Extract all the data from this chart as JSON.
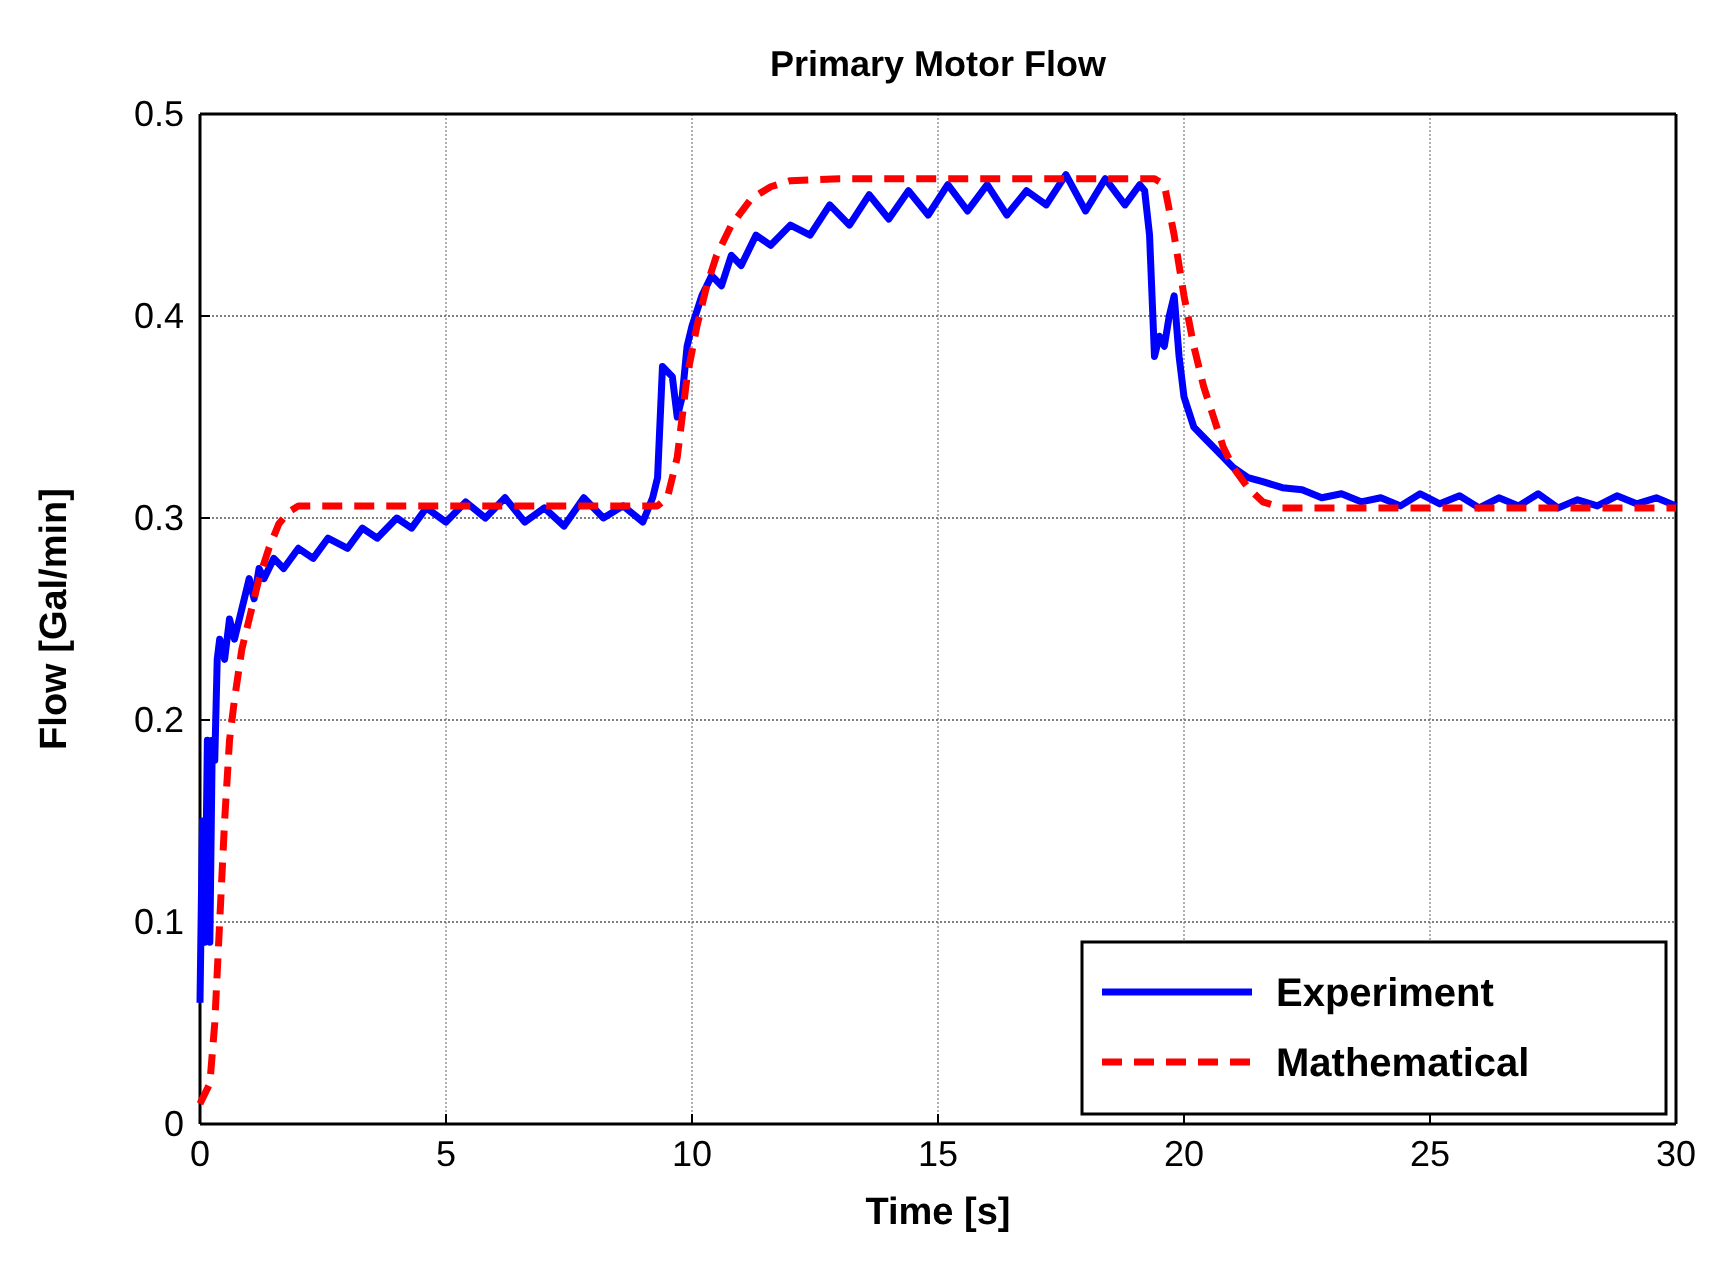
{
  "chart_data": {
    "type": "line",
    "title": "Primary Motor Flow",
    "xlabel": "Time [s]",
    "ylabel": "Flow [Gal/min]",
    "xlim": [
      0,
      30
    ],
    "ylim": [
      0,
      0.5
    ],
    "xticks": [
      0,
      5,
      10,
      15,
      20,
      25,
      30
    ],
    "yticks": [
      0,
      0.1,
      0.2,
      0.3,
      0.4,
      0.5
    ],
    "grid": true,
    "legend": "bottom right",
    "series": [
      {
        "name": "Experiment",
        "color": "#0000ff",
        "line_style": "solid",
        "x": [
          0,
          0.05,
          0.1,
          0.15,
          0.2,
          0.25,
          0.3,
          0.35,
          0.4,
          0.5,
          0.6,
          0.7,
          0.8,
          0.9,
          1.0,
          1.1,
          1.2,
          1.3,
          1.5,
          1.7,
          2.0,
          2.3,
          2.6,
          3.0,
          3.3,
          3.6,
          4.0,
          4.3,
          4.6,
          5.0,
          5.4,
          5.8,
          6.2,
          6.6,
          7.0,
          7.4,
          7.8,
          8.2,
          8.6,
          9.0,
          9.2,
          9.3,
          9.4,
          9.6,
          9.7,
          9.8,
          9.9,
          10.0,
          10.2,
          10.4,
          10.6,
          10.8,
          11.0,
          11.3,
          11.6,
          12.0,
          12.4,
          12.8,
          13.2,
          13.6,
          14.0,
          14.4,
          14.8,
          15.2,
          15.6,
          16.0,
          16.4,
          16.8,
          17.2,
          17.6,
          18.0,
          18.4,
          18.8,
          19.1,
          19.2,
          19.3,
          19.4,
          19.5,
          19.6,
          19.7,
          19.8,
          19.9,
          20.0,
          20.2,
          20.4,
          20.6,
          20.8,
          21.0,
          21.3,
          21.6,
          22.0,
          22.4,
          22.8,
          23.2,
          23.6,
          24.0,
          24.4,
          24.8,
          25.2,
          25.6,
          26.0,
          26.4,
          26.8,
          27.2,
          27.6,
          28.0,
          28.4,
          28.8,
          29.2,
          29.6,
          30.0
        ],
        "values": [
          0.06,
          0.15,
          0.09,
          0.19,
          0.09,
          0.19,
          0.18,
          0.23,
          0.24,
          0.23,
          0.25,
          0.24,
          0.25,
          0.26,
          0.27,
          0.26,
          0.275,
          0.27,
          0.28,
          0.275,
          0.285,
          0.28,
          0.29,
          0.285,
          0.295,
          0.29,
          0.3,
          0.295,
          0.305,
          0.298,
          0.308,
          0.3,
          0.31,
          0.298,
          0.305,
          0.296,
          0.31,
          0.3,
          0.306,
          0.298,
          0.31,
          0.32,
          0.375,
          0.37,
          0.35,
          0.36,
          0.385,
          0.395,
          0.41,
          0.42,
          0.415,
          0.43,
          0.425,
          0.44,
          0.435,
          0.445,
          0.44,
          0.455,
          0.445,
          0.46,
          0.448,
          0.462,
          0.45,
          0.465,
          0.452,
          0.465,
          0.45,
          0.462,
          0.455,
          0.47,
          0.452,
          0.468,
          0.455,
          0.465,
          0.462,
          0.44,
          0.38,
          0.39,
          0.385,
          0.4,
          0.41,
          0.38,
          0.36,
          0.345,
          0.34,
          0.335,
          0.33,
          0.325,
          0.32,
          0.318,
          0.315,
          0.314,
          0.31,
          0.312,
          0.308,
          0.31,
          0.306,
          0.312,
          0.307,
          0.311,
          0.305,
          0.31,
          0.306,
          0.312,
          0.305,
          0.309,
          0.306,
          0.311,
          0.307,
          0.31,
          0.306
        ]
      },
      {
        "name": "Mathematical",
        "color": "#ff0000",
        "line_style": "dashed",
        "x": [
          0,
          0.2,
          0.3,
          0.4,
          0.5,
          0.6,
          0.7,
          0.85,
          1.0,
          1.2,
          1.4,
          1.6,
          1.8,
          2.0,
          9.3,
          9.5,
          9.7,
          9.9,
          10.1,
          10.3,
          10.5,
          10.8,
          11.2,
          11.6,
          12.0,
          13.0,
          19.4,
          19.6,
          19.8,
          20.0,
          20.2,
          20.4,
          20.6,
          20.8,
          21.0,
          21.3,
          21.6,
          22.0,
          30.0
        ],
        "values": [
          0.01,
          0.02,
          0.05,
          0.1,
          0.15,
          0.19,
          0.21,
          0.235,
          0.25,
          0.27,
          0.285,
          0.297,
          0.303,
          0.306,
          0.306,
          0.31,
          0.33,
          0.37,
          0.395,
          0.415,
          0.43,
          0.445,
          0.458,
          0.464,
          0.467,
          0.468,
          0.468,
          0.465,
          0.44,
          0.41,
          0.385,
          0.365,
          0.35,
          0.335,
          0.325,
          0.315,
          0.308,
          0.305,
          0.305
        ]
      }
    ]
  }
}
